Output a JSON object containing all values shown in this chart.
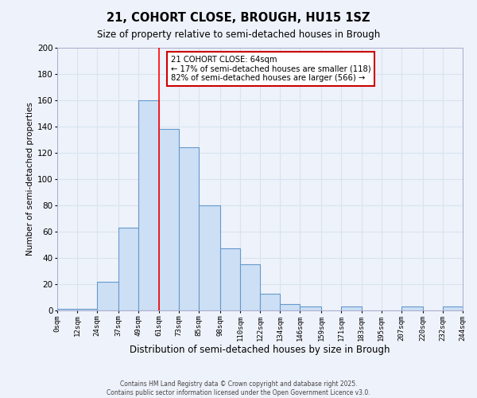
{
  "title": "21, COHORT CLOSE, BROUGH, HU15 1SZ",
  "subtitle": "Size of property relative to semi-detached houses in Brough",
  "xlabel": "Distribution of semi-detached houses by size in Brough",
  "ylabel": "Number of semi-detached properties",
  "bar_color": "#ccdff5",
  "bar_edge_color": "#6699cc",
  "background_color": "#eef2fa",
  "grid_color": "#d8e4f0",
  "vline_x": 61,
  "vline_color": "red",
  "annotation_title": "21 COHORT CLOSE: 64sqm",
  "annotation_line1": "← 17% of semi-detached houses are smaller (118)",
  "annotation_line2": "82% of semi-detached houses are larger (566) →",
  "tick_labels": [
    "0sqm",
    "12sqm",
    "24sqm",
    "37sqm",
    "49sqm",
    "61sqm",
    "73sqm",
    "85sqm",
    "98sqm",
    "110sqm",
    "122sqm",
    "134sqm",
    "146sqm",
    "159sqm",
    "171sqm",
    "183sqm",
    "195sqm",
    "207sqm",
    "220sqm",
    "232sqm",
    "244sqm"
  ],
  "bin_edges": [
    0,
    12,
    24,
    37,
    49,
    61,
    73,
    85,
    98,
    110,
    122,
    134,
    146,
    159,
    171,
    183,
    195,
    207,
    220,
    232,
    244
  ],
  "counts": [
    1,
    1,
    22,
    63,
    160,
    138,
    124,
    80,
    47,
    35,
    13,
    5,
    3,
    0,
    3,
    0,
    0,
    3,
    0,
    3
  ],
  "ylim": [
    0,
    200
  ],
  "yticks": [
    0,
    20,
    40,
    60,
    80,
    100,
    120,
    140,
    160,
    180,
    200
  ],
  "footer_line1": "Contains HM Land Registry data © Crown copyright and database right 2025.",
  "footer_line2": "Contains public sector information licensed under the Open Government Licence v3.0."
}
